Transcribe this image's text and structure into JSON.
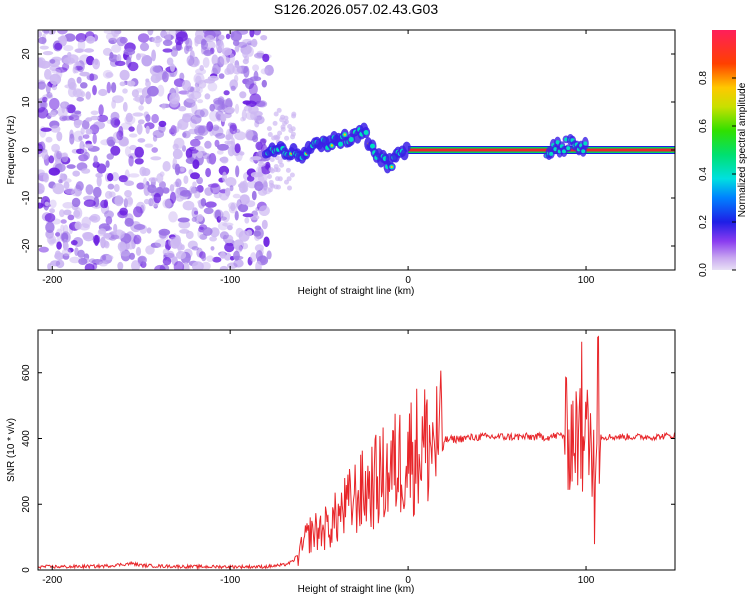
{
  "title": "S126.2026.057.02.43.G03",
  "colors": {
    "snr_line": "#e8262a",
    "track_center": "#e8262a",
    "noise_light": "#cdb8f2",
    "noise_mid": "#9b72e6",
    "noise_dark": "#6a1ee0"
  },
  "chart_data": [
    {
      "type": "heatmap",
      "name": "spectrogram",
      "title": "S126.2026.057.02.43.G03",
      "xlabel": "Height of straight line (km)",
      "ylabel": "Frequency (Hz)",
      "xlim": [
        -208,
        150
      ],
      "ylim": [
        -25,
        25
      ],
      "xticks": [
        -200,
        -100,
        0,
        100
      ],
      "xtick_labels": [
        "-200",
        "-100",
        "0",
        "100"
      ],
      "yticks": [
        20,
        10,
        0,
        -10,
        -20
      ],
      "ytick_labels": [
        "20",
        "10",
        "0",
        "-10",
        "-20"
      ],
      "noise_region_x": [
        -208,
        -78
      ],
      "track": {
        "x": [
          -80,
          -70,
          -60,
          -50,
          -40,
          -30,
          -25,
          -20,
          -15,
          -10,
          -5,
          0,
          20,
          80,
          90,
          100,
          150
        ],
        "freq": [
          0,
          0,
          -1,
          1,
          2,
          3,
          4,
          0,
          -2,
          -3,
          -1,
          0,
          0,
          0,
          1,
          0,
          0
        ]
      },
      "colorbar": {
        "label": "Normalized spectral amplitude",
        "range": [
          0.0,
          1.0
        ],
        "ticks": [
          0.0,
          0.2,
          0.4,
          0.6,
          0.8
        ],
        "tick_labels": [
          "0.0",
          "0.2",
          "0.4",
          "0.6",
          "0.8"
        ]
      }
    },
    {
      "type": "line",
      "name": "snr",
      "xlabel": "Height of straight line (km)",
      "ylabel": "SNR (10 * v/v)",
      "xlim": [
        -208,
        150
      ],
      "ylim": [
        0,
        730
      ],
      "xticks": [
        -200,
        -100,
        0,
        100
      ],
      "xtick_labels": [
        "-200",
        "-100",
        "0",
        "100"
      ],
      "yticks": [
        0,
        200,
        400,
        600
      ],
      "ytick_labels": [
        "0",
        "200",
        "400",
        "600"
      ],
      "series": [
        {
          "name": "SNR",
          "x": [
            -208,
            -190,
            -170,
            -155,
            -150,
            -140,
            -120,
            -100,
            -80,
            -70,
            -65,
            -60,
            -58,
            -55,
            -50,
            -45,
            -40,
            -35,
            -30,
            -25,
            -20,
            -15,
            -10,
            -5,
            0,
            5,
            10,
            15,
            20,
            30,
            40,
            50,
            60,
            70,
            80,
            85,
            90,
            94,
            97,
            99,
            101,
            103,
            105,
            107,
            110,
            120,
            130,
            140,
            150
          ],
          "y": [
            10,
            10,
            12,
            20,
            14,
            12,
            10,
            10,
            10,
            15,
            25,
            60,
            90,
            110,
            120,
            130,
            160,
            190,
            220,
            240,
            260,
            280,
            300,
            330,
            350,
            370,
            380,
            390,
            395,
            400,
            405,
            405,
            405,
            405,
            405,
            410,
            410,
            420,
            400,
            380,
            400,
            390,
            400,
            410,
            405,
            405,
            405,
            405,
            410
          ]
        }
      ]
    }
  ]
}
